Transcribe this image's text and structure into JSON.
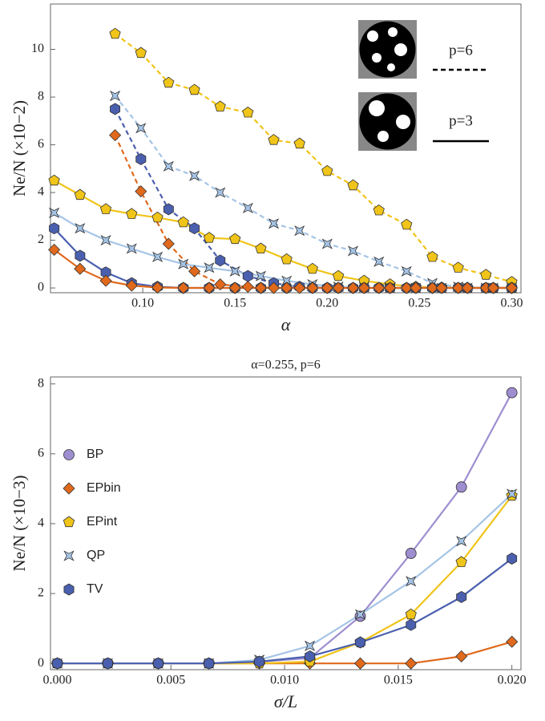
{
  "chart_data": [
    {
      "type": "line",
      "xlabel": "α",
      "ylabel": "Ne/N (×10−2)",
      "xlim": [
        0.05,
        0.305
      ],
      "ylim": [
        -0.2,
        11.9
      ],
      "xticks": [
        {
          "value": 0.1,
          "label": "0.10"
        },
        {
          "value": 0.15,
          "label": "0.15"
        },
        {
          "value": 0.2,
          "label": "0.20"
        },
        {
          "value": 0.25,
          "label": "0.25"
        },
        {
          "value": 0.3,
          "label": "0.30"
        }
      ],
      "yticks": [
        0,
        2,
        4,
        6,
        8,
        10
      ],
      "annotations": [
        "p=6",
        "p=3"
      ],
      "series": [
        {
          "color": "#f0c419",
          "marker": "pentagon",
          "dashed": true,
          "x": [
            0.085,
            0.099,
            0.114,
            0.128,
            0.142,
            0.157,
            0.171,
            0.185,
            0.2,
            0.214,
            0.228,
            0.243,
            0.257,
            0.271,
            0.286,
            0.3
          ],
          "values": [
            10.65,
            9.85,
            8.6,
            8.3,
            7.6,
            7.35,
            6.2,
            6.05,
            4.9,
            4.3,
            3.25,
            2.65,
            1.3,
            0.85,
            0.55,
            0.25
          ]
        },
        {
          "color": "#a5c4e6",
          "marker": "star",
          "dashed": true,
          "x": [
            0.085,
            0.099,
            0.114,
            0.128,
            0.142,
            0.157,
            0.171,
            0.185,
            0.2,
            0.214,
            0.228,
            0.243,
            0.257,
            0.271,
            0.286,
            0.3
          ],
          "values": [
            8.05,
            6.7,
            5.1,
            4.7,
            4.0,
            3.35,
            2.7,
            2.4,
            1.85,
            1.55,
            1.1,
            0.7,
            0.2,
            0.05,
            0,
            0
          ]
        },
        {
          "color": "#4a5fae",
          "marker": "hexagon",
          "dashed": true,
          "x": [
            0.085,
            0.099,
            0.114,
            0.128,
            0.142,
            0.157,
            0.171,
            0.185,
            0.2,
            0.214,
            0.228,
            0.243,
            0.257,
            0.271,
            0.286,
            0.3
          ],
          "values": [
            7.5,
            5.4,
            3.3,
            2.5,
            1.15,
            0.5,
            0.2,
            0.05,
            0,
            0,
            0,
            0,
            0,
            0,
            0,
            0
          ]
        },
        {
          "color": "#e0691c",
          "marker": "diamond",
          "dashed": true,
          "x": [
            0.085,
            0.099,
            0.114,
            0.128,
            0.142,
            0.157,
            0.171,
            0.185,
            0.2,
            0.214,
            0.228,
            0.243,
            0.257,
            0.271,
            0.286,
            0.3
          ],
          "values": [
            6.4,
            4.05,
            1.85,
            0.7,
            0.15,
            0.05,
            0,
            0,
            0,
            0,
            0,
            0,
            0,
            0,
            0,
            0
          ]
        },
        {
          "color": "#f0c419",
          "marker": "pentagon",
          "dashed": false,
          "x": [
            0.052,
            0.066,
            0.08,
            0.094,
            0.108,
            0.122,
            0.136,
            0.15,
            0.164,
            0.178,
            0.192,
            0.206,
            0.22,
            0.234,
            0.248,
            0.262,
            0.276,
            0.29,
            0.3
          ],
          "values": [
            4.5,
            3.9,
            3.3,
            3.1,
            2.95,
            2.75,
            2.1,
            2.05,
            1.65,
            1.2,
            0.8,
            0.5,
            0.3,
            0.15,
            0.05,
            0.02,
            0.01,
            0,
            0
          ]
        },
        {
          "color": "#a5c4e6",
          "marker": "star",
          "dashed": false,
          "x": [
            0.052,
            0.066,
            0.08,
            0.094,
            0.108,
            0.122,
            0.136,
            0.15,
            0.164,
            0.178,
            0.192,
            0.206,
            0.22,
            0.234,
            0.248,
            0.262,
            0.276,
            0.29,
            0.3
          ],
          "values": [
            3.15,
            2.5,
            2.0,
            1.65,
            1.3,
            1.0,
            0.85,
            0.7,
            0.5,
            0.3,
            0.15,
            0.05,
            0.02,
            0,
            0,
            0,
            0,
            0,
            0
          ]
        },
        {
          "color": "#4a5fae",
          "marker": "hexagon",
          "dashed": false,
          "x": [
            0.052,
            0.066,
            0.08,
            0.094,
            0.108,
            0.122,
            0.136,
            0.15,
            0.164,
            0.178,
            0.192,
            0.206,
            0.22,
            0.234,
            0.248,
            0.262,
            0.276,
            0.29,
            0.3
          ],
          "values": [
            2.5,
            1.35,
            0.65,
            0.2,
            0.05,
            0,
            0,
            0,
            0,
            0,
            0,
            0,
            0,
            0,
            0,
            0,
            0,
            0,
            0
          ]
        },
        {
          "color": "#e0691c",
          "marker": "diamond",
          "dashed": false,
          "x": [
            0.052,
            0.066,
            0.08,
            0.094,
            0.108,
            0.122,
            0.136,
            0.15,
            0.164,
            0.178,
            0.192,
            0.206,
            0.22,
            0.234,
            0.248,
            0.262,
            0.276,
            0.29,
            0.3
          ],
          "values": [
            1.6,
            0.8,
            0.3,
            0.1,
            0.02,
            0,
            0,
            0,
            0,
            0,
            0,
            0,
            0,
            0,
            0,
            0,
            0,
            0,
            0
          ]
        }
      ]
    },
    {
      "type": "line",
      "title": "α=0.255, p=6",
      "xlabel": "σ/L",
      "ylabel": "Ne/N (×10−3)",
      "xlim": [
        -0.0003,
        0.0204
      ],
      "ylim": [
        -0.18,
        8.2
      ],
      "xticks": [
        {
          "value": 0,
          "label": "0.000"
        },
        {
          "value": 0.005,
          "label": "0.005"
        },
        {
          "value": 0.01,
          "label": "0.010"
        },
        {
          "value": 0.015,
          "label": "0.015"
        },
        {
          "value": 0.02,
          "label": "0.020"
        }
      ],
      "yticks": [
        0,
        2,
        4,
        6,
        8
      ],
      "x": [
        0,
        0.00222,
        0.00444,
        0.00667,
        0.00889,
        0.01111,
        0.01333,
        0.01556,
        0.01778,
        0.02
      ],
      "series": [
        {
          "name": "BP",
          "color": "#9e8ed0",
          "marker": "circle",
          "values": [
            0,
            0,
            0,
            0,
            0.05,
            0.15,
            1.35,
            3.15,
            5.05,
            7.75
          ]
        },
        {
          "name": "EPbin",
          "color": "#e0691c",
          "marker": "diamond",
          "values": [
            0,
            0,
            0,
            0,
            0,
            0,
            0,
            0,
            0.2,
            0.62
          ]
        },
        {
          "name": "EPint",
          "color": "#f0c419",
          "marker": "pentagon",
          "values": [
            0,
            0,
            0,
            0,
            0,
            0.05,
            0.6,
            1.4,
            2.9,
            4.8
          ]
        },
        {
          "name": "QP",
          "color": "#a5c4e6",
          "marker": "star",
          "values": [
            0,
            0,
            0,
            0,
            0.1,
            0.5,
            1.4,
            2.35,
            3.5,
            4.85
          ]
        },
        {
          "name": "TV",
          "color": "#4a5fae",
          "marker": "hexagon",
          "values": [
            0,
            0,
            0,
            0,
            0.05,
            0.2,
            0.6,
            1.1,
            1.9,
            3.0
          ]
        }
      ]
    }
  ]
}
